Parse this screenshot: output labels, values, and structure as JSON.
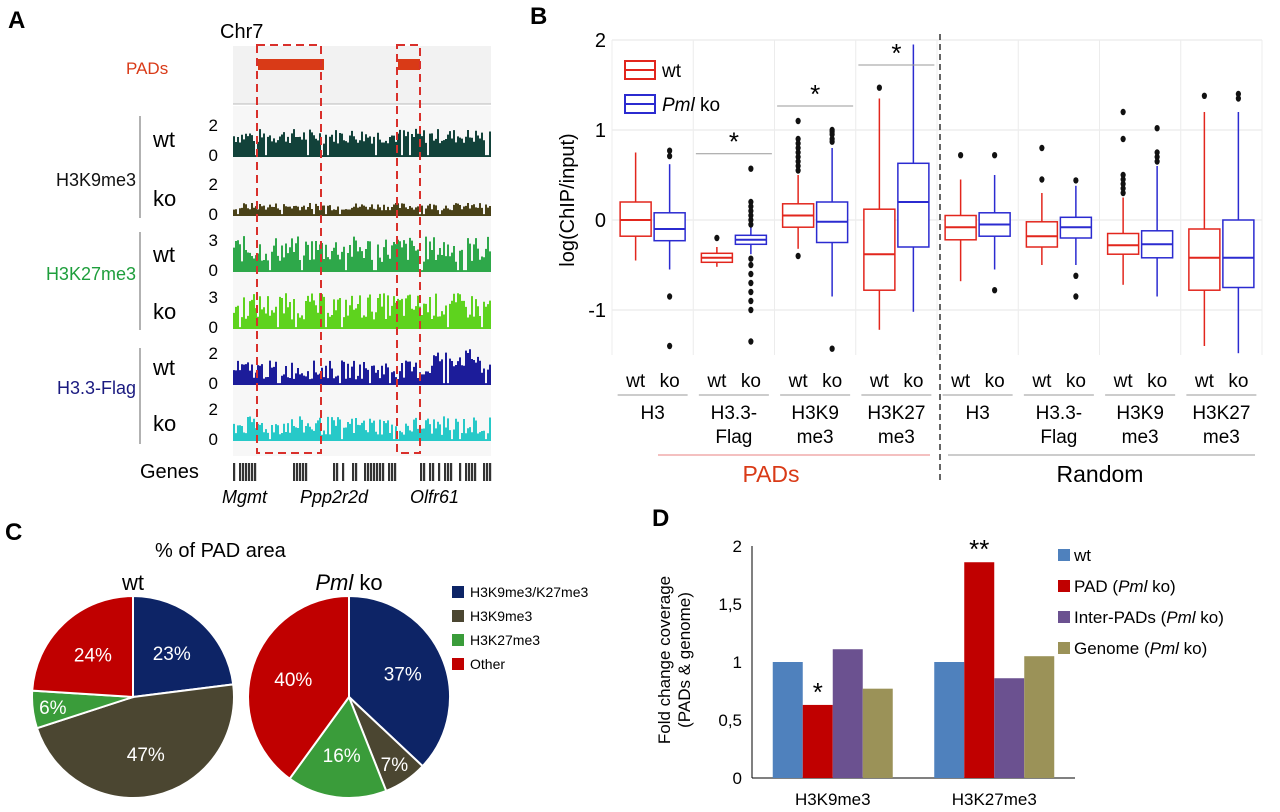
{
  "colors": {
    "pads_red": "#d93a17",
    "dash_red": "#d9302b",
    "wt_box": "#e2261d",
    "ko_box": "#2b2bd0",
    "h3k9_wt": "#12423a",
    "h3k9_ko": "#4a4218",
    "h3k27_wt": "#2ea84a",
    "h3k27_ko": "#5ed31e",
    "h33_wt": "#1c1c9a",
    "h33_ko": "#27c9c8",
    "h3k27_label": "#1e9e3c",
    "h33_label": "#1a1a80",
    "pie_navy": "#0d2466",
    "pie_olive": "#4b4631",
    "pie_green": "#3a9c3a",
    "pie_red": "#c00000",
    "bar_wt": "#4f81bd",
    "bar_pad": "#c00000",
    "bar_inter": "#6b5190",
    "bar_genome": "#9b9258"
  },
  "panel_a": {
    "letter": "A",
    "chrom": "Chr7",
    "pads_label": "PADs",
    "genes_label": "Genes",
    "genes": [
      "Mgmt",
      "Ppp2r2d",
      "Olfr61"
    ],
    "tracks": [
      {
        "group": "H3K9me3",
        "sample": "wt",
        "ymax": "2",
        "ymin": "0",
        "color_key": "h3k9_wt"
      },
      {
        "group": "H3K9me3",
        "sample": "ko",
        "ymax": "2",
        "ymin": "0",
        "color_key": "h3k9_ko"
      },
      {
        "group": "H3K27me3",
        "sample": "wt",
        "ymax": "3",
        "ymin": "0",
        "color_key": "h3k27_wt"
      },
      {
        "group": "H3K27me3",
        "sample": "ko",
        "ymax": "3",
        "ymin": "0",
        "color_key": "h3k27_ko"
      },
      {
        "group": "H3.3-Flag",
        "sample": "wt",
        "ymax": "2",
        "ymin": "0",
        "color_key": "h33_wt"
      },
      {
        "group": "H3.3-Flag",
        "sample": "ko",
        "ymax": "2",
        "ymin": "0",
        "color_key": "h33_ko"
      }
    ],
    "groups": [
      "H3K9me3",
      "H3K27me3",
      "H3.3-Flag"
    ]
  },
  "panel_b": {
    "letter": "B",
    "chart_data": {
      "type": "box",
      "ylabel": "log(ChIP/input)",
      "ylim": [
        -1.5,
        2
      ],
      "yticks": [
        "2",
        "1",
        "0",
        "-1"
      ],
      "legend": [
        {
          "name": "wt",
          "italic": ""
        },
        {
          "name": " ko",
          "italic": "Pml"
        }
      ],
      "legend_position": "top-left",
      "sample_labels": [
        "wt",
        "ko"
      ],
      "groups": [
        {
          "label": "H3",
          "region": "PADs",
          "sig": "",
          "wt": {
            "q1": -0.18,
            "med": 0.0,
            "q3": 0.2,
            "lo": -0.45,
            "hi": 0.75,
            "outliers": []
          },
          "ko": {
            "q1": -0.23,
            "med": -0.1,
            "q3": 0.08,
            "lo": -0.55,
            "hi": 0.62,
            "outliers": [
              0.77,
              0.71,
              -0.85,
              -1.4
            ]
          }
        },
        {
          "label": "H3.3-\nFlag",
          "region": "PADs",
          "sig": "*",
          "wt": {
            "q1": -0.47,
            "med": -0.42,
            "q3": -0.37,
            "lo": -0.52,
            "hi": -0.3,
            "outliers": [
              -0.2
            ]
          },
          "ko": {
            "q1": -0.27,
            "med": -0.22,
            "q3": -0.17,
            "lo": -0.38,
            "hi": -0.06,
            "outliers": [
              0.57,
              0.2,
              0.15,
              0.1,
              0.05,
              0.0,
              -0.05,
              -0.43,
              -0.5,
              -0.6,
              -0.7,
              -0.8,
              -0.9,
              -1.0,
              -1.35
            ]
          }
        },
        {
          "label": "H3K9\nme3",
          "region": "PADs",
          "sig": "*",
          "wt": {
            "q1": -0.08,
            "med": 0.05,
            "q3": 0.18,
            "lo": -0.32,
            "hi": 0.5,
            "outliers": [
              1.1,
              0.9,
              0.85,
              0.8,
              0.75,
              0.7,
              0.65,
              0.6,
              0.55,
              -0.4
            ]
          },
          "ko": {
            "q1": -0.25,
            "med": -0.02,
            "q3": 0.2,
            "lo": -0.85,
            "hi": 0.8,
            "outliers": [
              1.0,
              0.98,
              0.95,
              0.9,
              0.87,
              -1.43
            ]
          }
        },
        {
          "label": "H3K27\nme3",
          "region": "PADs",
          "sig": "*",
          "wt": {
            "q1": -0.78,
            "med": -0.38,
            "q3": 0.12,
            "lo": -1.22,
            "hi": 1.35,
            "outliers": [
              1.47
            ]
          },
          "ko": {
            "q1": -0.3,
            "med": 0.2,
            "q3": 0.63,
            "lo": -1.02,
            "hi": 1.95,
            "outliers": []
          }
        },
        {
          "label": "H3",
          "region": "Random",
          "sig": "",
          "wt": {
            "q1": -0.22,
            "med": -0.08,
            "q3": 0.05,
            "lo": -0.68,
            "hi": 0.45,
            "outliers": [
              0.72
            ]
          },
          "ko": {
            "q1": -0.18,
            "med": -0.05,
            "q3": 0.08,
            "lo": -0.55,
            "hi": 0.5,
            "outliers": [
              0.72,
              -0.78
            ]
          }
        },
        {
          "label": "H3.3-\nFlag",
          "region": "Random",
          "sig": "",
          "wt": {
            "q1": -0.3,
            "med": -0.18,
            "q3": -0.02,
            "lo": -0.5,
            "hi": 0.3,
            "outliers": [
              0.8,
              0.45
            ]
          },
          "ko": {
            "q1": -0.2,
            "med": -0.08,
            "q3": 0.03,
            "lo": -0.5,
            "hi": 0.38,
            "outliers": [
              0.44,
              -0.62,
              -0.85
            ]
          }
        },
        {
          "label": "H3K9\nme3",
          "region": "Random",
          "sig": "",
          "wt": {
            "q1": -0.38,
            "med": -0.28,
            "q3": -0.15,
            "lo": -0.72,
            "hi": 0.25,
            "outliers": [
              1.2,
              0.9,
              0.5,
              0.45,
              0.4,
              0.35,
              0.3
            ]
          },
          "ko": {
            "q1": -0.42,
            "med": -0.27,
            "q3": -0.12,
            "lo": -0.85,
            "hi": 0.6,
            "outliers": [
              1.02,
              0.75,
              0.7,
              0.65
            ]
          }
        },
        {
          "label": "H3K27\nme3",
          "region": "Random",
          "sig": "",
          "wt": {
            "q1": -0.78,
            "med": -0.42,
            "q3": -0.1,
            "lo": -1.4,
            "hi": 1.2,
            "outliers": [
              1.38
            ]
          },
          "ko": {
            "q1": -0.75,
            "med": -0.42,
            "q3": 0.0,
            "lo": -1.48,
            "hi": 1.2,
            "outliers": [
              1.4,
              1.35
            ]
          }
        }
      ],
      "regions": [
        {
          "name": "PADs",
          "color_key": "pads_red"
        },
        {
          "name": "Random",
          "color_key": ""
        }
      ]
    }
  },
  "panel_c": {
    "letter": "C",
    "title": "% of PAD area",
    "chart_data": [
      {
        "type": "pie",
        "title": "wt",
        "title_italic": "",
        "slices": [
          {
            "name": "H3K9me3/K27me3",
            "value": 23,
            "label": "23%",
            "color_key": "pie_navy"
          },
          {
            "name": "H3K9me3",
            "value": 47,
            "label": "47%",
            "color_key": "pie_olive"
          },
          {
            "name": "H3K27me3",
            "value": 6,
            "label": "6%",
            "color_key": "pie_green"
          },
          {
            "name": "Other",
            "value": 24,
            "label": "24%",
            "color_key": "pie_red"
          }
        ]
      },
      {
        "type": "pie",
        "title": " ko",
        "title_italic": "Pml",
        "slices": [
          {
            "name": "H3K9me3/K27me3",
            "value": 37,
            "label": "37%",
            "color_key": "pie_navy"
          },
          {
            "name": "H3K9me3",
            "value": 7,
            "label": "7%",
            "color_key": "pie_olive"
          },
          {
            "name": "H3K27me3",
            "value": 16,
            "label": "16%",
            "color_key": "pie_green"
          },
          {
            "name": "Other",
            "value": 40,
            "label": "40%",
            "color_key": "pie_red"
          }
        ]
      }
    ],
    "legend": [
      {
        "name": "H3K9me3/K27me3",
        "color_key": "pie_navy"
      },
      {
        "name": "H3K9me3",
        "color_key": "pie_olive"
      },
      {
        "name": "H3K27me3",
        "color_key": "pie_green"
      },
      {
        "name": "Other",
        "color_key": "pie_red"
      }
    ]
  },
  "panel_d": {
    "letter": "D",
    "chart_data": {
      "type": "bar",
      "ylabel": "Fold change coverage\n(PADs & genome)",
      "ylim": [
        0,
        2
      ],
      "yticks": [
        "0",
        "0,5",
        "1",
        "1,5",
        "2"
      ],
      "categories": [
        "H3K9me3",
        "H3K27me3"
      ],
      "series": [
        {
          "name": "wt",
          "italic": "",
          "suffix": "",
          "color_key": "bar_wt",
          "values": [
            1.0,
            1.0
          ]
        },
        {
          "name": "PAD ",
          "italic": "(Pml",
          "suffix": " ko)",
          "color_key": "bar_pad",
          "values": [
            0.63,
            1.86
          ]
        },
        {
          "name": "Inter-PADs ",
          "italic": "(Pml",
          "suffix": " ko)",
          "color_key": "bar_inter",
          "values": [
            1.11,
            0.86
          ]
        },
        {
          "name": "Genome ",
          "italic": "(Pml",
          "suffix": " ko)",
          "color_key": "bar_genome",
          "values": [
            0.77,
            1.05
          ]
        }
      ],
      "annotations": [
        {
          "category": 0,
          "series": 1,
          "text": "*"
        },
        {
          "category": 1,
          "series": 1,
          "text": "**"
        }
      ],
      "legend_position": "right"
    }
  }
}
